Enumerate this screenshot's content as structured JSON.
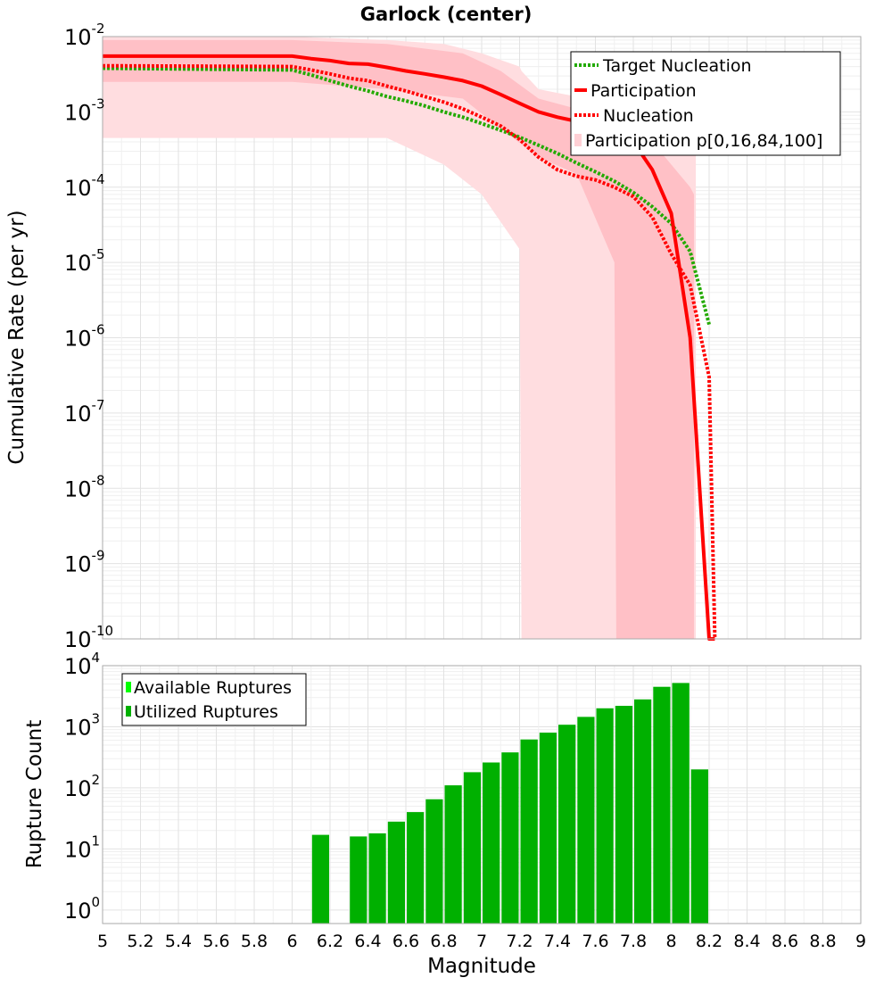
{
  "chart_data": [
    {
      "type": "line",
      "title": "Garlock (center)",
      "xlabel": "",
      "ylabel": "Cumulative Rate (per yr)",
      "xlim": [
        5,
        9
      ],
      "ylim": [
        1e-10,
        0.01
      ],
      "y_scale": "log",
      "grid": true,
      "legend_position": "top-right",
      "y_ticks": [
        {
          "base": "10",
          "exp": "-2"
        },
        {
          "base": "10",
          "exp": "-3"
        },
        {
          "base": "10",
          "exp": "-4"
        },
        {
          "base": "10",
          "exp": "-5"
        },
        {
          "base": "10",
          "exp": "-6"
        },
        {
          "base": "10",
          "exp": "-7"
        },
        {
          "base": "10",
          "exp": "-8"
        },
        {
          "base": "10",
          "exp": "-9"
        },
        {
          "base": "10",
          "exp": "-10"
        }
      ],
      "legend": [
        "Target Nucleation",
        "Participation",
        "Nucleation",
        "Participation p[0,16,84,100]"
      ],
      "series": [
        {
          "name": "Target Nucleation",
          "color": "#22aa00",
          "style": "dotted",
          "x": [
            5.0,
            6.0,
            6.1,
            6.2,
            6.3,
            6.4,
            6.5,
            6.6,
            6.7,
            6.8,
            6.9,
            7.0,
            7.1,
            7.2,
            7.3,
            7.4,
            7.5,
            7.6,
            7.7,
            7.8,
            7.9,
            8.0,
            8.1,
            8.2
          ],
          "y": [
            0.0038,
            0.0036,
            0.0031,
            0.0026,
            0.0022,
            0.0019,
            0.0016,
            0.0014,
            0.0012,
            0.001,
            0.00085,
            0.0007,
            0.00057,
            0.00046,
            0.00036,
            0.00028,
            0.00021,
            0.00016,
            0.00012,
            8.5e-05,
            5.5e-05,
            3.3e-05,
            1.4e-05,
            1.5e-06
          ]
        },
        {
          "name": "Participation",
          "color": "#ff0000",
          "style": "solid",
          "x": [
            5.0,
            6.0,
            6.1,
            6.2,
            6.3,
            6.4,
            6.5,
            6.6,
            6.7,
            6.8,
            6.9,
            7.0,
            7.1,
            7.2,
            7.3,
            7.4,
            7.5,
            7.6,
            7.7,
            7.8,
            7.9,
            8.0,
            8.1,
            8.2,
            8.23
          ],
          "y": [
            0.0055,
            0.0055,
            0.0051,
            0.0048,
            0.0044,
            0.0043,
            0.0039,
            0.0035,
            0.0032,
            0.0029,
            0.0026,
            0.0022,
            0.0017,
            0.0013,
            0.001,
            0.00085,
            0.00075,
            0.00065,
            0.00055,
            0.0004,
            0.00017,
            4.5e-05,
            1e-06,
            1e-10,
            1e-10
          ]
        },
        {
          "name": "Nucleation",
          "color": "#ff0000",
          "style": "dotted",
          "x": [
            5.0,
            6.0,
            6.1,
            6.2,
            6.3,
            6.4,
            6.5,
            6.6,
            6.7,
            6.8,
            6.9,
            7.0,
            7.1,
            7.2,
            7.3,
            7.4,
            7.5,
            7.6,
            7.7,
            7.8,
            7.9,
            8.0,
            8.1,
            8.2,
            8.23
          ],
          "y": [
            0.0041,
            0.004,
            0.0036,
            0.0032,
            0.0028,
            0.0026,
            0.0022,
            0.0019,
            0.0016,
            0.00135,
            0.0011,
            0.00085,
            0.00065,
            0.00043,
            0.00025,
            0.00017,
            0.00014,
            0.000125,
            0.0001,
            7.5e-05,
            4e-05,
            1.3e-05,
            5e-06,
            3e-07,
            1e-10
          ]
        }
      ],
      "bands": [
        {
          "name": "Participation p[0,100]",
          "color": "#ffdde0",
          "x": [
            5.0,
            5.5,
            6.0,
            6.5,
            6.8,
            7.0,
            7.2,
            7.21,
            7.3,
            7.5,
            7.7,
            7.9,
            8.1,
            8.13
          ],
          "lo": [
            0.00045,
            0.00045,
            0.00045,
            0.00045,
            0.0002,
            8e-05,
            1.5e-05,
            1e-10,
            1e-10,
            1e-10,
            1e-10,
            1e-10,
            1e-10,
            1e-10
          ],
          "hi": [
            0.01,
            0.01,
            0.01,
            0.009,
            0.008,
            0.006,
            0.004,
            0.0035,
            0.002,
            0.0016,
            0.0012,
            0.0009,
            0.0008,
            0.0007
          ]
        },
        {
          "name": "Participation p[16,84]",
          "color": "#ffc0c6",
          "x": [
            5.0,
            6.0,
            6.5,
            6.9,
            7.1,
            7.3,
            7.5,
            7.7,
            7.71,
            7.9,
            8.0,
            8.1,
            8.12
          ],
          "lo": [
            0.0025,
            0.0025,
            0.002,
            0.0015,
            0.0006,
            0.00025,
            0.00015,
            1e-05,
            1e-10,
            1e-10,
            1e-10,
            1e-10,
            1e-10
          ],
          "hi": [
            0.009,
            0.009,
            0.008,
            0.006,
            0.0035,
            0.0015,
            0.0011,
            0.0008,
            0.0007,
            0.0004,
            0.0002,
            0.0001,
            8e-05
          ]
        }
      ]
    },
    {
      "type": "bar",
      "xlabel": "Magnitude",
      "ylabel": "Rupture Count",
      "xlim": [
        5,
        9
      ],
      "ylim": [
        0.6,
        10000
      ],
      "y_scale": "log",
      "grid": true,
      "legend_position": "top-left",
      "bin_width": 0.1,
      "x_ticks": [
        "5",
        "5.2",
        "5.4",
        "5.6",
        "5.8",
        "6",
        "6.2",
        "6.4",
        "6.6",
        "6.8",
        "7",
        "7.2",
        "7.4",
        "7.6",
        "7.8",
        "8",
        "8.2",
        "8.4",
        "8.6",
        "8.8",
        "9"
      ],
      "y_ticks": [
        {
          "base": "10",
          "exp": "4"
        },
        {
          "base": "10",
          "exp": "3"
        },
        {
          "base": "10",
          "exp": "2"
        },
        {
          "base": "10",
          "exp": "1"
        },
        {
          "base": "10",
          "exp": "0"
        }
      ],
      "legend": [
        "Available Ruptures",
        "Utilized Ruptures"
      ],
      "series": [
        {
          "name": "Available Ruptures",
          "color": "#00ff00"
        },
        {
          "name": "Utilized Ruptures",
          "color": "#00b000",
          "x": [
            6.15,
            6.35,
            6.45,
            6.55,
            6.65,
            6.75,
            6.85,
            6.95,
            7.05,
            7.15,
            7.25,
            7.35,
            7.45,
            7.55,
            7.65,
            7.75,
            7.85,
            7.95,
            8.05,
            8.15
          ],
          "values": [
            17,
            16,
            18,
            28,
            40,
            65,
            110,
            180,
            260,
            380,
            620,
            800,
            1080,
            1450,
            2000,
            2200,
            2800,
            4500,
            5200,
            200
          ]
        }
      ]
    }
  ]
}
